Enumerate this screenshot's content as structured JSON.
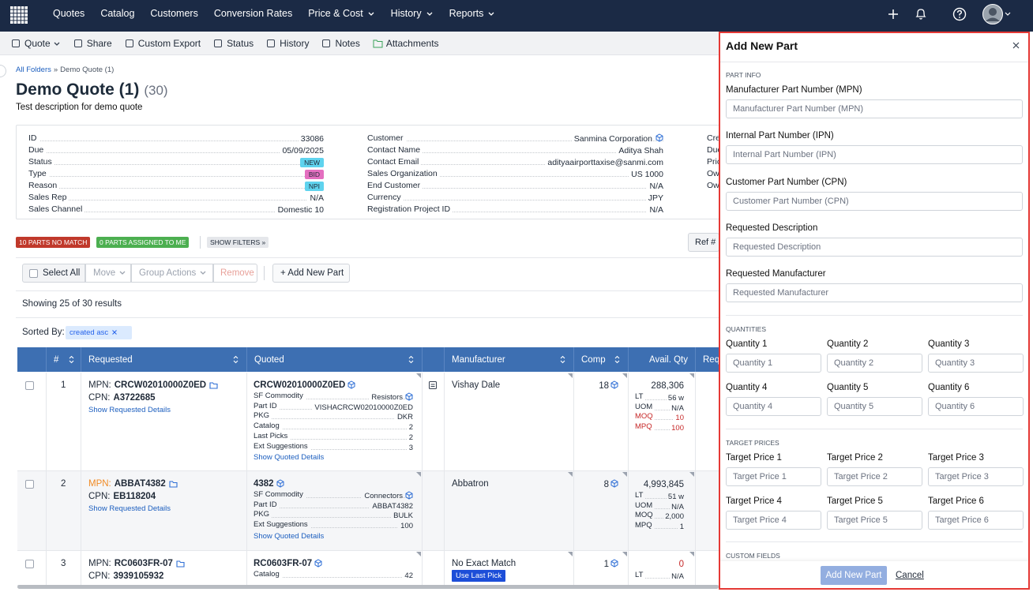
{
  "nav": {
    "items": [
      {
        "label": "Quotes",
        "dropdown": false
      },
      {
        "label": "Catalog",
        "dropdown": false
      },
      {
        "label": "Customers",
        "dropdown": false
      },
      {
        "label": "Conversion Rates",
        "dropdown": false
      },
      {
        "label": "Price & Cost",
        "dropdown": true
      },
      {
        "label": "History",
        "dropdown": true
      },
      {
        "label": "Reports",
        "dropdown": true
      }
    ]
  },
  "toolbar": {
    "items": [
      {
        "label": "Quote",
        "dropdown": true
      },
      {
        "label": "Share",
        "dropdown": false
      },
      {
        "label": "Custom Export",
        "dropdown": false
      },
      {
        "label": "Status",
        "dropdown": false
      },
      {
        "label": "History",
        "dropdown": false
      },
      {
        "label": "Notes",
        "dropdown": false
      },
      {
        "label": "Attachments",
        "dropdown": false
      }
    ]
  },
  "breadcrumb": {
    "root": "All Folders",
    "separator": "»",
    "current": "Demo Quote (1)"
  },
  "quote": {
    "title": "Demo Quote (1)",
    "count": "(30)",
    "description": "Test description for demo quote"
  },
  "details": {
    "left": [
      {
        "label": "ID",
        "value": "33086"
      },
      {
        "label": "Due",
        "value": "05/09/2025"
      },
      {
        "label": "Status",
        "value": "NEW",
        "badge_color": "#5fd3ee"
      },
      {
        "label": "Type",
        "value": "BID",
        "badge_color": "#e46fc0"
      },
      {
        "label": "Reason",
        "value": "NPI",
        "badge_color": "#5fd3ee"
      },
      {
        "label": "Sales Rep",
        "value": "N/A"
      },
      {
        "label": "Sales Channel",
        "value": "Domestic 10"
      }
    ],
    "middle": [
      {
        "label": "Customer",
        "value": "Sanmina Corporation",
        "cube_icon": true
      },
      {
        "label": "Contact Name",
        "value": "Aditya Shah"
      },
      {
        "label": "Contact Email",
        "value": "adityaairporttaxise@sanmi.com"
      },
      {
        "label": "Sales Organization",
        "value": "US 1000"
      },
      {
        "label": "End Customer",
        "value": "N/A"
      },
      {
        "label": "Currency",
        "value": "JPY"
      },
      {
        "label": "Registration Project ID",
        "value": "N/A"
      }
    ],
    "right_labels": [
      "Cre",
      "Due",
      "Pric",
      "Ow",
      "Ow"
    ]
  },
  "filters": {
    "no_match": "10 PARTS NO MATCH",
    "assigned": "0 PARTS ASSIGNED TO ME",
    "show_filters": "SHOW FILTERS »",
    "ref": "Ref #"
  },
  "actions": {
    "select_all": "Select All",
    "move": "Move",
    "group_actions": "Group Actions",
    "remove": "Remove",
    "add_new_part": "+ Add New Part"
  },
  "results": {
    "showing": "Showing 25 of 30 results",
    "sorted_by": "Sorted By:",
    "sort_chip": "created asc"
  },
  "table": {
    "columns": [
      {
        "label": "#",
        "sortable": true
      },
      {
        "label": "Requested",
        "sortable": true
      },
      {
        "label": "Quoted",
        "sortable": true
      },
      {
        "label": "Manufacturer",
        "sortable": true
      },
      {
        "label": "Comp",
        "sortable": true
      },
      {
        "label": "Avail. Qty",
        "sortable": false
      },
      {
        "label": "Req.",
        "sortable": false
      }
    ],
    "rows": [
      {
        "number": "1",
        "mpn_label": "MPN:",
        "mpn": "CRCW02010000Z0ED",
        "cpn_label": "CPN:",
        "cpn": "A3722685",
        "requested_link": "Show Requested Details",
        "quoted_part": "CRCW02010000Z0ED",
        "quoted_fields": [
          {
            "label": "SF Commodity",
            "value": "Resistors",
            "cube_icon": true
          },
          {
            "label": "Part ID",
            "value": "VISHACRCW02010000Z0ED"
          },
          {
            "label": "PKG",
            "value": "DKR"
          },
          {
            "label": "Catalog",
            "value": "2"
          },
          {
            "label": "Last Picks",
            "value": "2"
          },
          {
            "label": "Ext Suggestions",
            "value": "3"
          }
        ],
        "quoted_link": "Show Quoted Details",
        "manufacturer": "Vishay Dale",
        "comp": "18",
        "avail_qty": "288,306",
        "avail_fields": [
          {
            "label": "LT",
            "value": "56 w"
          },
          {
            "label": "UOM",
            "value": "N/A"
          },
          {
            "label": "MOQ",
            "value": "10",
            "color": "#c62828"
          },
          {
            "label": "MPQ",
            "value": "100",
            "color": "#c62828"
          }
        ]
      },
      {
        "number": "2",
        "mpn_label": "MPN:",
        "mpn_label_color": "#f08a24",
        "mpn": "ABBAT4382",
        "cpn_label": "CPN:",
        "cpn": "EB118204",
        "requested_link": "Show Requested Details",
        "quoted_part": "4382",
        "quoted_fields": [
          {
            "label": "SF Commodity",
            "value": "Connectors",
            "cube_icon": true
          },
          {
            "label": "Part ID",
            "value": "ABBAT4382"
          },
          {
            "label": "PKG",
            "value": "BULK"
          },
          {
            "label": "Ext Suggestions",
            "value": "100"
          }
        ],
        "quoted_link": "Show Quoted Details",
        "manufacturer": "Abbatron",
        "comp": "8",
        "avail_qty": "4,993,845",
        "avail_fields": [
          {
            "label": "LT",
            "value": "51 w"
          },
          {
            "label": "UOM",
            "value": "N/A"
          },
          {
            "label": "MOQ",
            "value": "2,000"
          },
          {
            "label": "MPQ",
            "value": "1"
          }
        ]
      },
      {
        "number": "3",
        "mpn_label": "MPN:",
        "mpn": "RC0603FR-07",
        "cpn_label": "CPN:",
        "cpn": "3939105932",
        "quoted_part": "RC0603FR-07",
        "quoted_fields": [
          {
            "label": "Catalog",
            "value": "42"
          }
        ],
        "manufacturer": "No Exact Match",
        "manufacturer_button": "Use Last Pick",
        "comp": "1",
        "avail_qty": "0",
        "avail_color": "#c62828",
        "avail_fields": [
          {
            "label": "LT",
            "value": "N/A"
          }
        ]
      }
    ]
  },
  "panel": {
    "title": "Add New Part",
    "part_info": {
      "heading": "PART INFO",
      "fields": [
        {
          "label": "Manufacturer Part Number (MPN)",
          "placeholder": "Manufacturer Part Number (MPN)"
        },
        {
          "label": "Internal Part Number (IPN)",
          "placeholder": "Internal Part Number (IPN)"
        },
        {
          "label": "Customer Part Number (CPN)",
          "placeholder": "Customer Part Number (CPN)"
        },
        {
          "label": "Requested Description",
          "placeholder": "Requested Description"
        },
        {
          "label": "Requested Manufacturer",
          "placeholder": "Requested Manufacturer"
        }
      ]
    },
    "quantities": {
      "heading": "QUANTITIES",
      "fields": [
        {
          "label": "Quantity 1",
          "placeholder": "Quantity 1"
        },
        {
          "label": "Quantity 2",
          "placeholder": "Quantity 2"
        },
        {
          "label": "Quantity 3",
          "placeholder": "Quantity 3"
        },
        {
          "label": "Quantity 4",
          "placeholder": "Quantity 4"
        },
        {
          "label": "Quantity 5",
          "placeholder": "Quantity 5"
        },
        {
          "label": "Quantity 6",
          "placeholder": "Quantity 6"
        }
      ]
    },
    "target_prices": {
      "heading": "TARGET PRICES",
      "fields": [
        {
          "label": "Target Price 1",
          "placeholder": "Target Price 1"
        },
        {
          "label": "Target Price 2",
          "placeholder": "Target Price 2"
        },
        {
          "label": "Target Price 3",
          "placeholder": "Target Price 3"
        },
        {
          "label": "Target Price 4",
          "placeholder": "Target Price 4"
        },
        {
          "label": "Target Price 5",
          "placeholder": "Target Price 5"
        },
        {
          "label": "Target Price 6",
          "placeholder": "Target Price 6"
        }
      ]
    },
    "custom_fields": {
      "heading": "CUSTOM FIELDS"
    },
    "submit": "Add New Part",
    "cancel": "Cancel"
  }
}
